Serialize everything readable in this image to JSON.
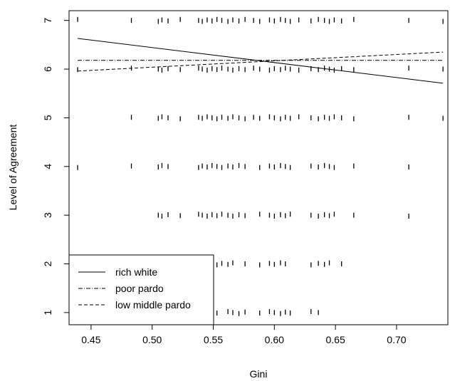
{
  "chart_data": {
    "type": "scatter",
    "title": "",
    "xlabel": "Gini",
    "ylabel": "Level of Agreement",
    "xlim": [
      0.432,
      0.742
    ],
    "ylim": [
      0.75,
      7.2
    ],
    "x_ticks": [
      0.45,
      0.5,
      0.55,
      0.6,
      0.65,
      0.7
    ],
    "x_tick_labels": [
      "0.45",
      "0.50",
      "0.55",
      "0.60",
      "0.65",
      "0.70"
    ],
    "y_ticks": [
      1,
      2,
      3,
      4,
      5,
      6,
      7
    ],
    "y_tick_labels": [
      "1",
      "2",
      "3",
      "4",
      "5",
      "6",
      "7"
    ],
    "grid": false,
    "legend_position": "bottom-left",
    "point_rows": [
      {
        "y": 7,
        "x": [
          0.439,
          0.483,
          0.505,
          0.508,
          0.513,
          0.523,
          0.538,
          0.541,
          0.545,
          0.549,
          0.553,
          0.557,
          0.562,
          0.566,
          0.571,
          0.576,
          0.583,
          0.588,
          0.596,
          0.6,
          0.605,
          0.609,
          0.613,
          0.62,
          0.63,
          0.636,
          0.641,
          0.645,
          0.649,
          0.655,
          0.665,
          0.71,
          0.738
        ]
      },
      {
        "y": 6,
        "x": [
          0.439,
          0.483,
          0.505,
          0.508,
          0.513,
          0.523,
          0.538,
          0.541,
          0.545,
          0.549,
          0.553,
          0.557,
          0.562,
          0.566,
          0.571,
          0.576,
          0.583,
          0.588,
          0.596,
          0.6,
          0.605,
          0.609,
          0.613,
          0.62,
          0.63,
          0.636,
          0.641,
          0.645,
          0.649,
          0.655,
          0.665,
          0.71,
          0.738
        ]
      },
      {
        "y": 5,
        "x": [
          0.483,
          0.505,
          0.508,
          0.513,
          0.523,
          0.538,
          0.541,
          0.545,
          0.549,
          0.553,
          0.557,
          0.562,
          0.566,
          0.571,
          0.576,
          0.583,
          0.588,
          0.596,
          0.6,
          0.605,
          0.609,
          0.613,
          0.62,
          0.63,
          0.636,
          0.641,
          0.645,
          0.649,
          0.655,
          0.665,
          0.71,
          0.738
        ]
      },
      {
        "y": 4,
        "x": [
          0.439,
          0.483,
          0.505,
          0.508,
          0.513,
          0.538,
          0.541,
          0.545,
          0.549,
          0.553,
          0.557,
          0.562,
          0.566,
          0.571,
          0.576,
          0.588,
          0.596,
          0.6,
          0.605,
          0.609,
          0.613,
          0.63,
          0.636,
          0.641,
          0.645,
          0.649,
          0.665,
          0.71
        ]
      },
      {
        "y": 3,
        "x": [
          0.505,
          0.508,
          0.513,
          0.523,
          0.538,
          0.541,
          0.545,
          0.549,
          0.553,
          0.557,
          0.562,
          0.566,
          0.571,
          0.576,
          0.588,
          0.596,
          0.6,
          0.605,
          0.609,
          0.613,
          0.63,
          0.636,
          0.641,
          0.645,
          0.649,
          0.665,
          0.71
        ]
      },
      {
        "y": 2,
        "x": [
          0.483,
          0.505,
          0.508,
          0.538,
          0.541,
          0.545,
          0.549,
          0.553,
          0.557,
          0.562,
          0.566,
          0.576,
          0.588,
          0.596,
          0.6,
          0.605,
          0.609,
          0.63,
          0.636,
          0.641,
          0.645,
          0.655
        ]
      },
      {
        "y": 1,
        "x": [
          0.505,
          0.508,
          0.513,
          0.538,
          0.545,
          0.553,
          0.562,
          0.566,
          0.571,
          0.576,
          0.588,
          0.596,
          0.6,
          0.605,
          0.609,
          0.613,
          0.63,
          0.636
        ]
      }
    ],
    "series": [
      {
        "name": "rich white",
        "style": "solid",
        "x": [
          0.439,
          0.738
        ],
        "y": [
          6.63,
          5.71
        ]
      },
      {
        "name": "poor pardo",
        "style": "dashdot",
        "x": [
          0.439,
          0.738
        ],
        "y": [
          6.18,
          6.18
        ]
      },
      {
        "name": "low middle pardo",
        "style": "dashed",
        "x": [
          0.439,
          0.738
        ],
        "y": [
          5.96,
          6.35
        ]
      }
    ],
    "colors": {
      "ink": "#000000",
      "background": "#ffffff"
    }
  }
}
